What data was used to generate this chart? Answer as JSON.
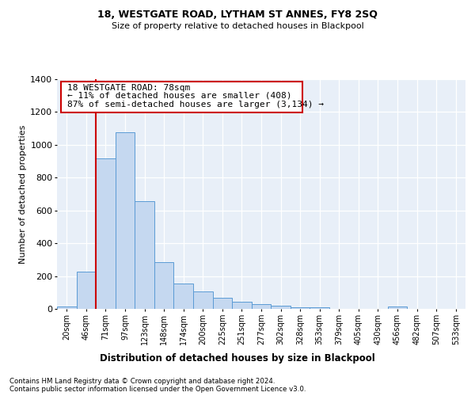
{
  "title1": "18, WESTGATE ROAD, LYTHAM ST ANNES, FY8 2SQ",
  "title2": "Size of property relative to detached houses in Blackpool",
  "xlabel": "Distribution of detached houses by size in Blackpool",
  "ylabel": "Number of detached properties",
  "bar_labels": [
    "20sqm",
    "46sqm",
    "71sqm",
    "97sqm",
    "123sqm",
    "148sqm",
    "174sqm",
    "200sqm",
    "225sqm",
    "251sqm",
    "277sqm",
    "302sqm",
    "328sqm",
    "353sqm",
    "379sqm",
    "405sqm",
    "430sqm",
    "456sqm",
    "482sqm",
    "507sqm",
    "533sqm"
  ],
  "bar_values": [
    15,
    225,
    915,
    1075,
    655,
    285,
    155,
    105,
    70,
    45,
    28,
    18,
    12,
    8,
    0,
    0,
    0,
    15,
    0,
    0,
    0
  ],
  "bar_color": "#C5D8F0",
  "bar_edge_color": "#5B9BD5",
  "vline_color": "#CC0000",
  "annotation_line1": "18 WESTGATE ROAD: 78sqm",
  "annotation_line2": "← 11% of detached houses are smaller (408)",
  "annotation_line3": "87% of semi-detached houses are larger (3,134) →",
  "box_edge_color": "#CC0000",
  "ylim": [
    0,
    1400
  ],
  "yticks": [
    0,
    200,
    400,
    600,
    800,
    1000,
    1200,
    1400
  ],
  "footnote1": "Contains HM Land Registry data © Crown copyright and database right 2024.",
  "footnote2": "Contains public sector information licensed under the Open Government Licence v3.0.",
  "bg_color": "#E8EFF8"
}
